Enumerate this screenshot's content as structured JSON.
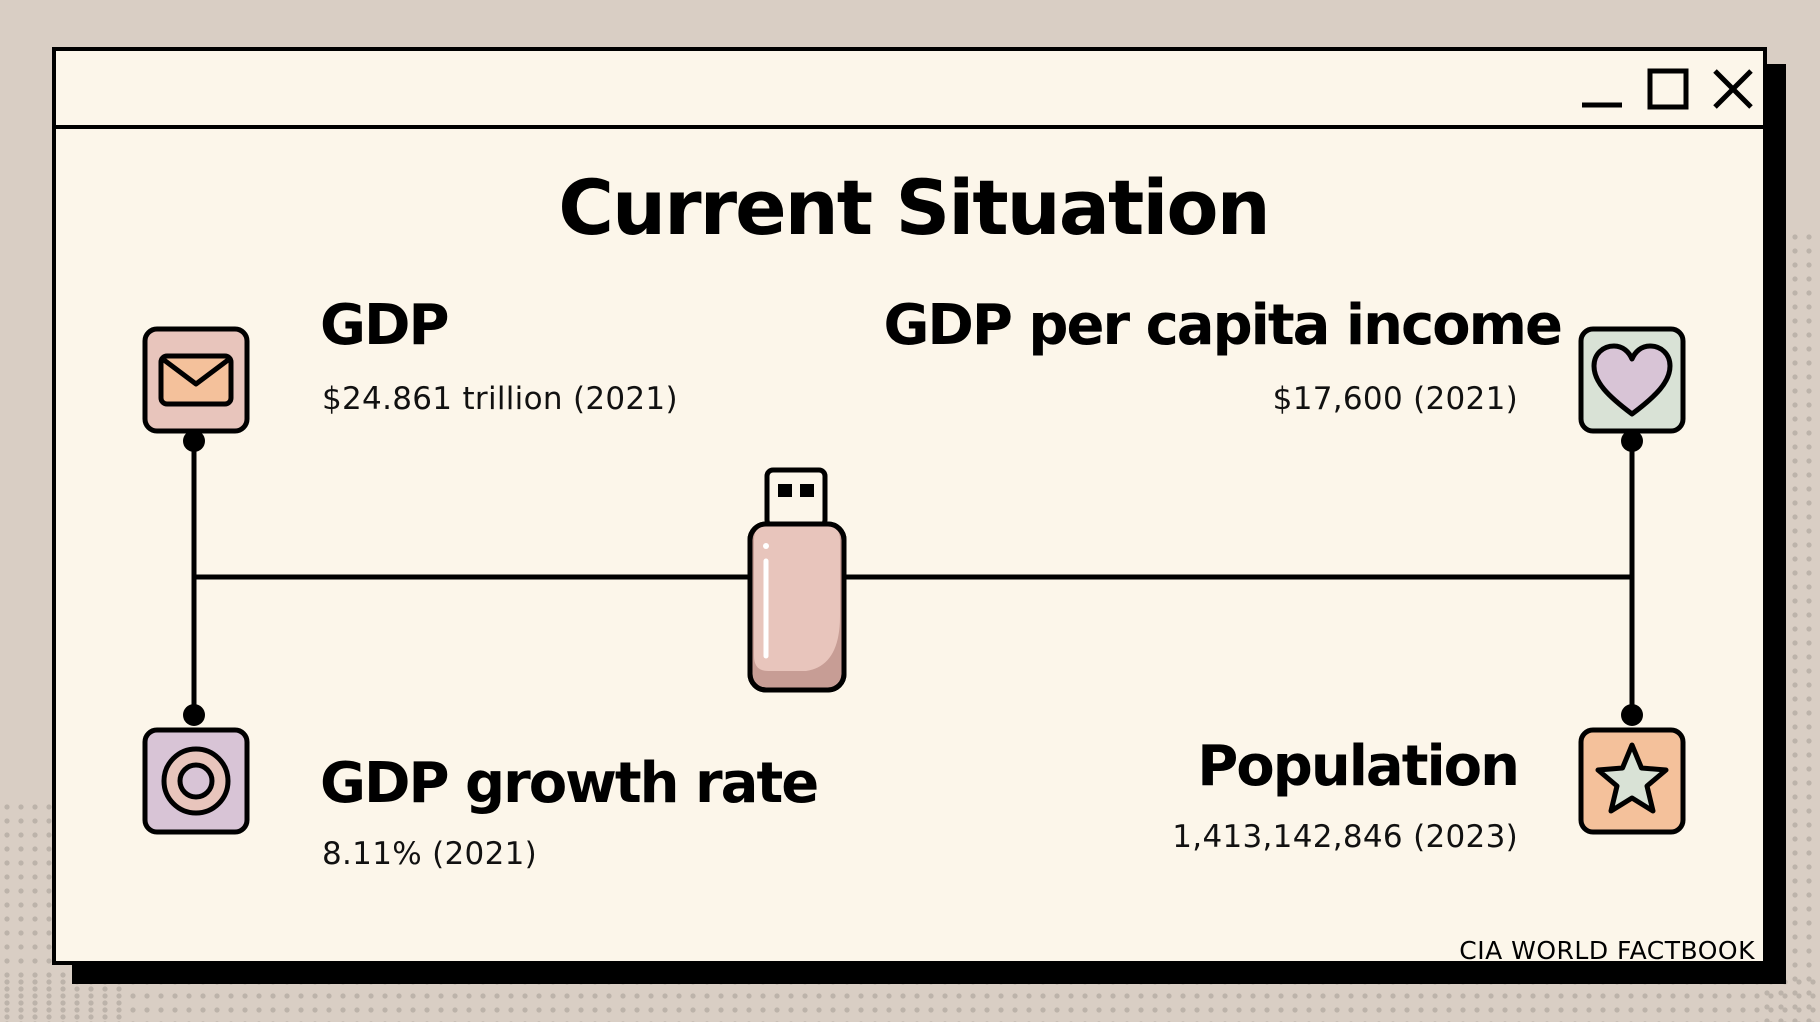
{
  "window": {
    "controls": {
      "minimize": "minimize-icon",
      "maximize": "maximize-icon",
      "close": "close-icon"
    }
  },
  "title": "Current Situation",
  "stats": {
    "gdp": {
      "label": "GDP",
      "value": "$24.861 trillion (2021)",
      "icon": "envelope-icon",
      "icon_color": "#f4c19b",
      "box_color": "#e8c5bc"
    },
    "gdp_per_capita": {
      "label": "GDP per capita income",
      "value": "$17,600 (2021)",
      "icon": "heart-icon",
      "icon_color": "#d8c4d6",
      "box_color": "#d9e2d6"
    },
    "gdp_growth": {
      "label": "GDP growth rate",
      "value": "8.11% (2021)",
      "icon": "target-icon",
      "icon_color": "#e8c5bc",
      "box_color": "#d8c4d6"
    },
    "population": {
      "label": "Population",
      "value": "1,413,142,846 (2023)",
      "icon": "star-icon",
      "icon_color": "#d9e2d6",
      "box_color": "#f4c19b"
    }
  },
  "center_graphic": {
    "icon": "usb-drive-icon",
    "color": "#e8c5bc"
  },
  "source": "CIA WORLD FACTBOOK",
  "colors": {
    "background": "#d9cec4",
    "panel": "#fcf6ea",
    "ink": "#000000"
  }
}
